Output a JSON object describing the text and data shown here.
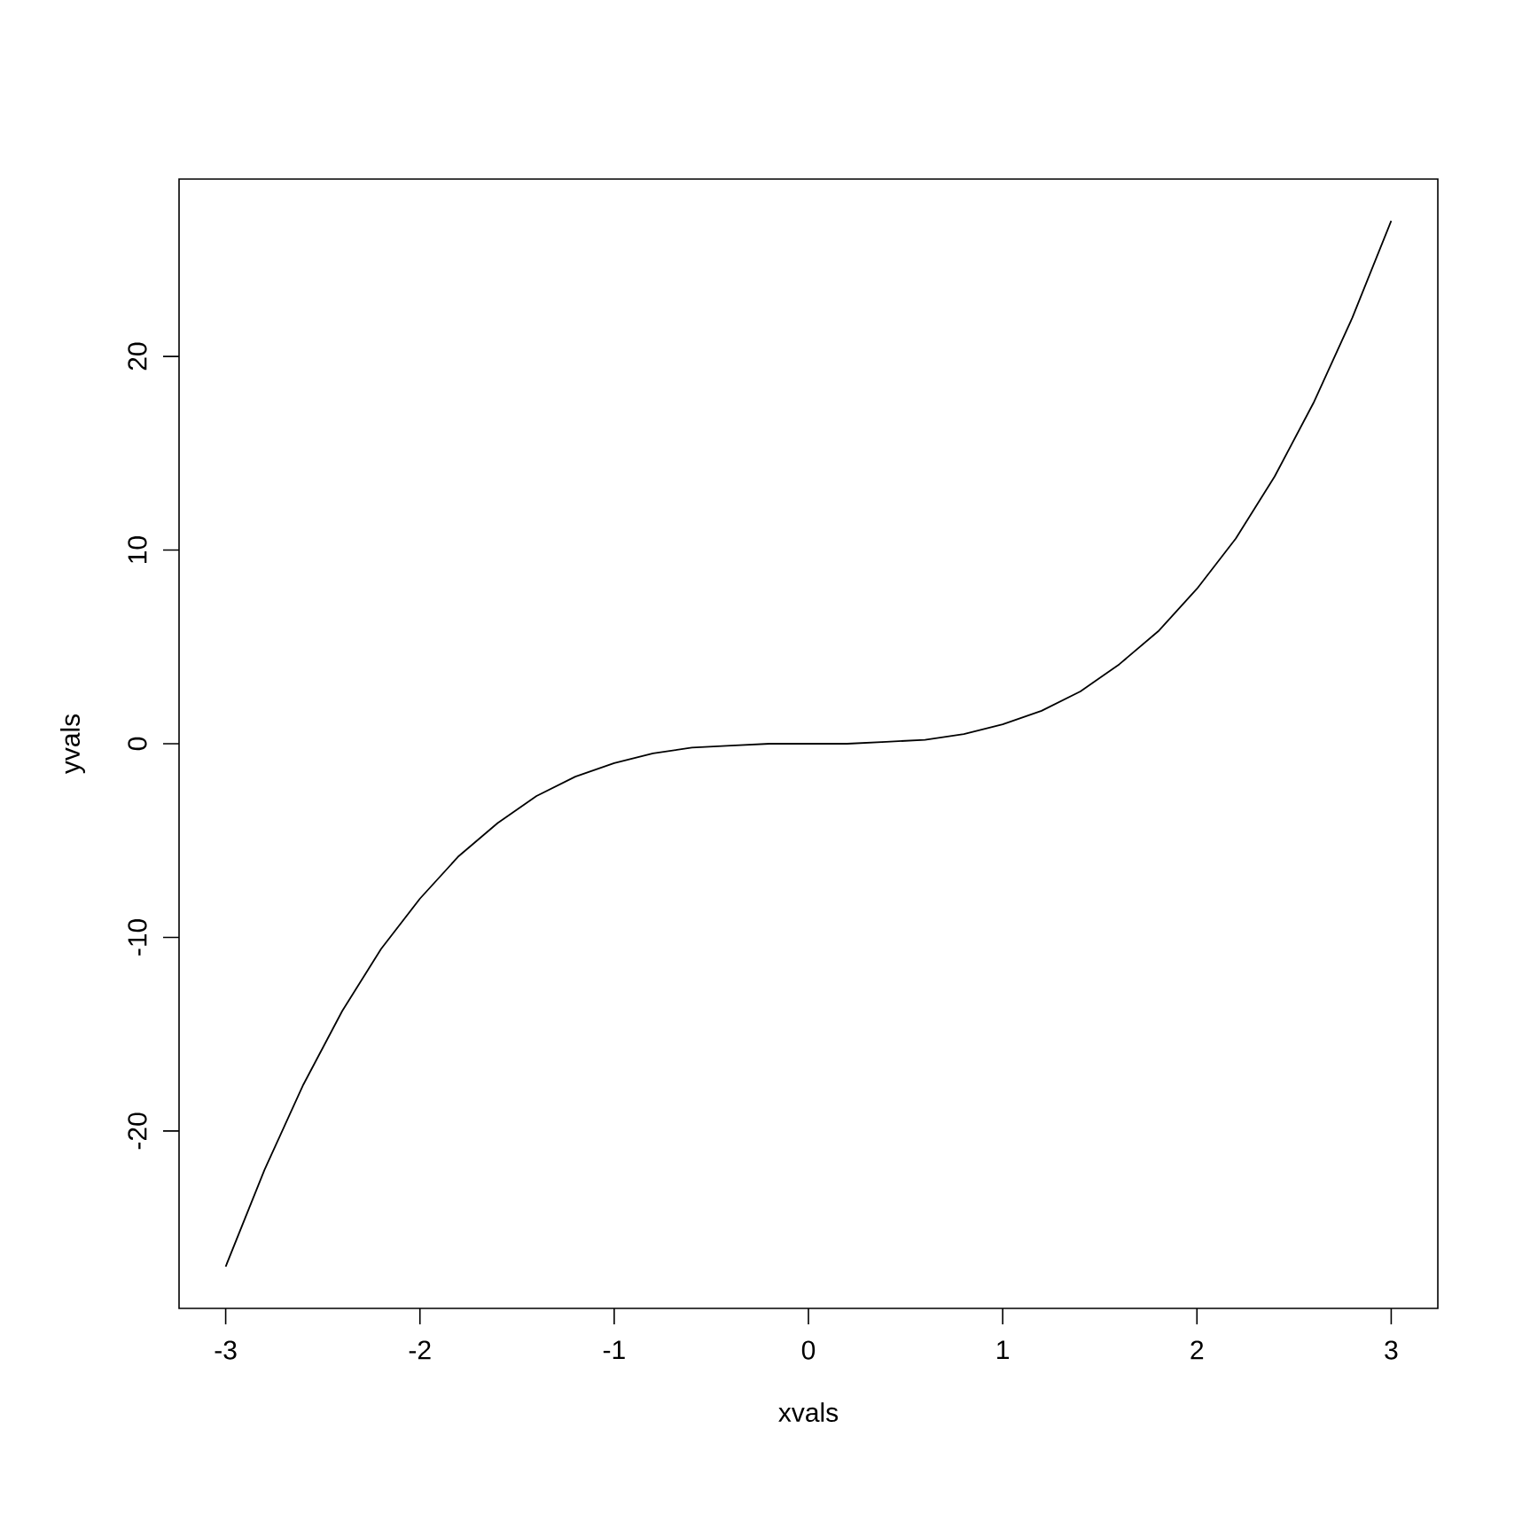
{
  "chart_data": {
    "type": "line",
    "xlabel": "xvals",
    "ylabel": "yvals",
    "x": [
      -3.0,
      -2.8,
      -2.6,
      -2.4,
      -2.2,
      -2.0,
      -1.8,
      -1.6,
      -1.4,
      -1.2,
      -1.0,
      -0.8,
      -0.6,
      -0.4,
      -0.2,
      0.0,
      0.2,
      0.4,
      0.6,
      0.8,
      1.0,
      1.2,
      1.4,
      1.6,
      1.8,
      2.0,
      2.2,
      2.4,
      2.6,
      2.8,
      3.0
    ],
    "values": [
      -27.0,
      -22.0,
      -17.6,
      -13.8,
      -10.6,
      -8.0,
      -5.8,
      -4.1,
      -2.7,
      -1.7,
      -1.0,
      -0.5,
      -0.2,
      -0.1,
      0.0,
      0.0,
      0.0,
      0.1,
      0.2,
      0.5,
      1.0,
      1.7,
      2.7,
      4.1,
      5.8,
      8.0,
      10.6,
      13.8,
      17.6,
      22.0,
      27.0
    ],
    "color": "#000000",
    "marker": "none",
    "line_style": "solid",
    "xlim": [
      -3.24,
      3.24
    ],
    "ylim": [
      -29.16,
      29.16
    ],
    "xticks": [
      -3,
      -2,
      -1,
      0,
      1,
      2,
      3
    ],
    "yticks": [
      -20,
      -10,
      0,
      10,
      20
    ]
  }
}
